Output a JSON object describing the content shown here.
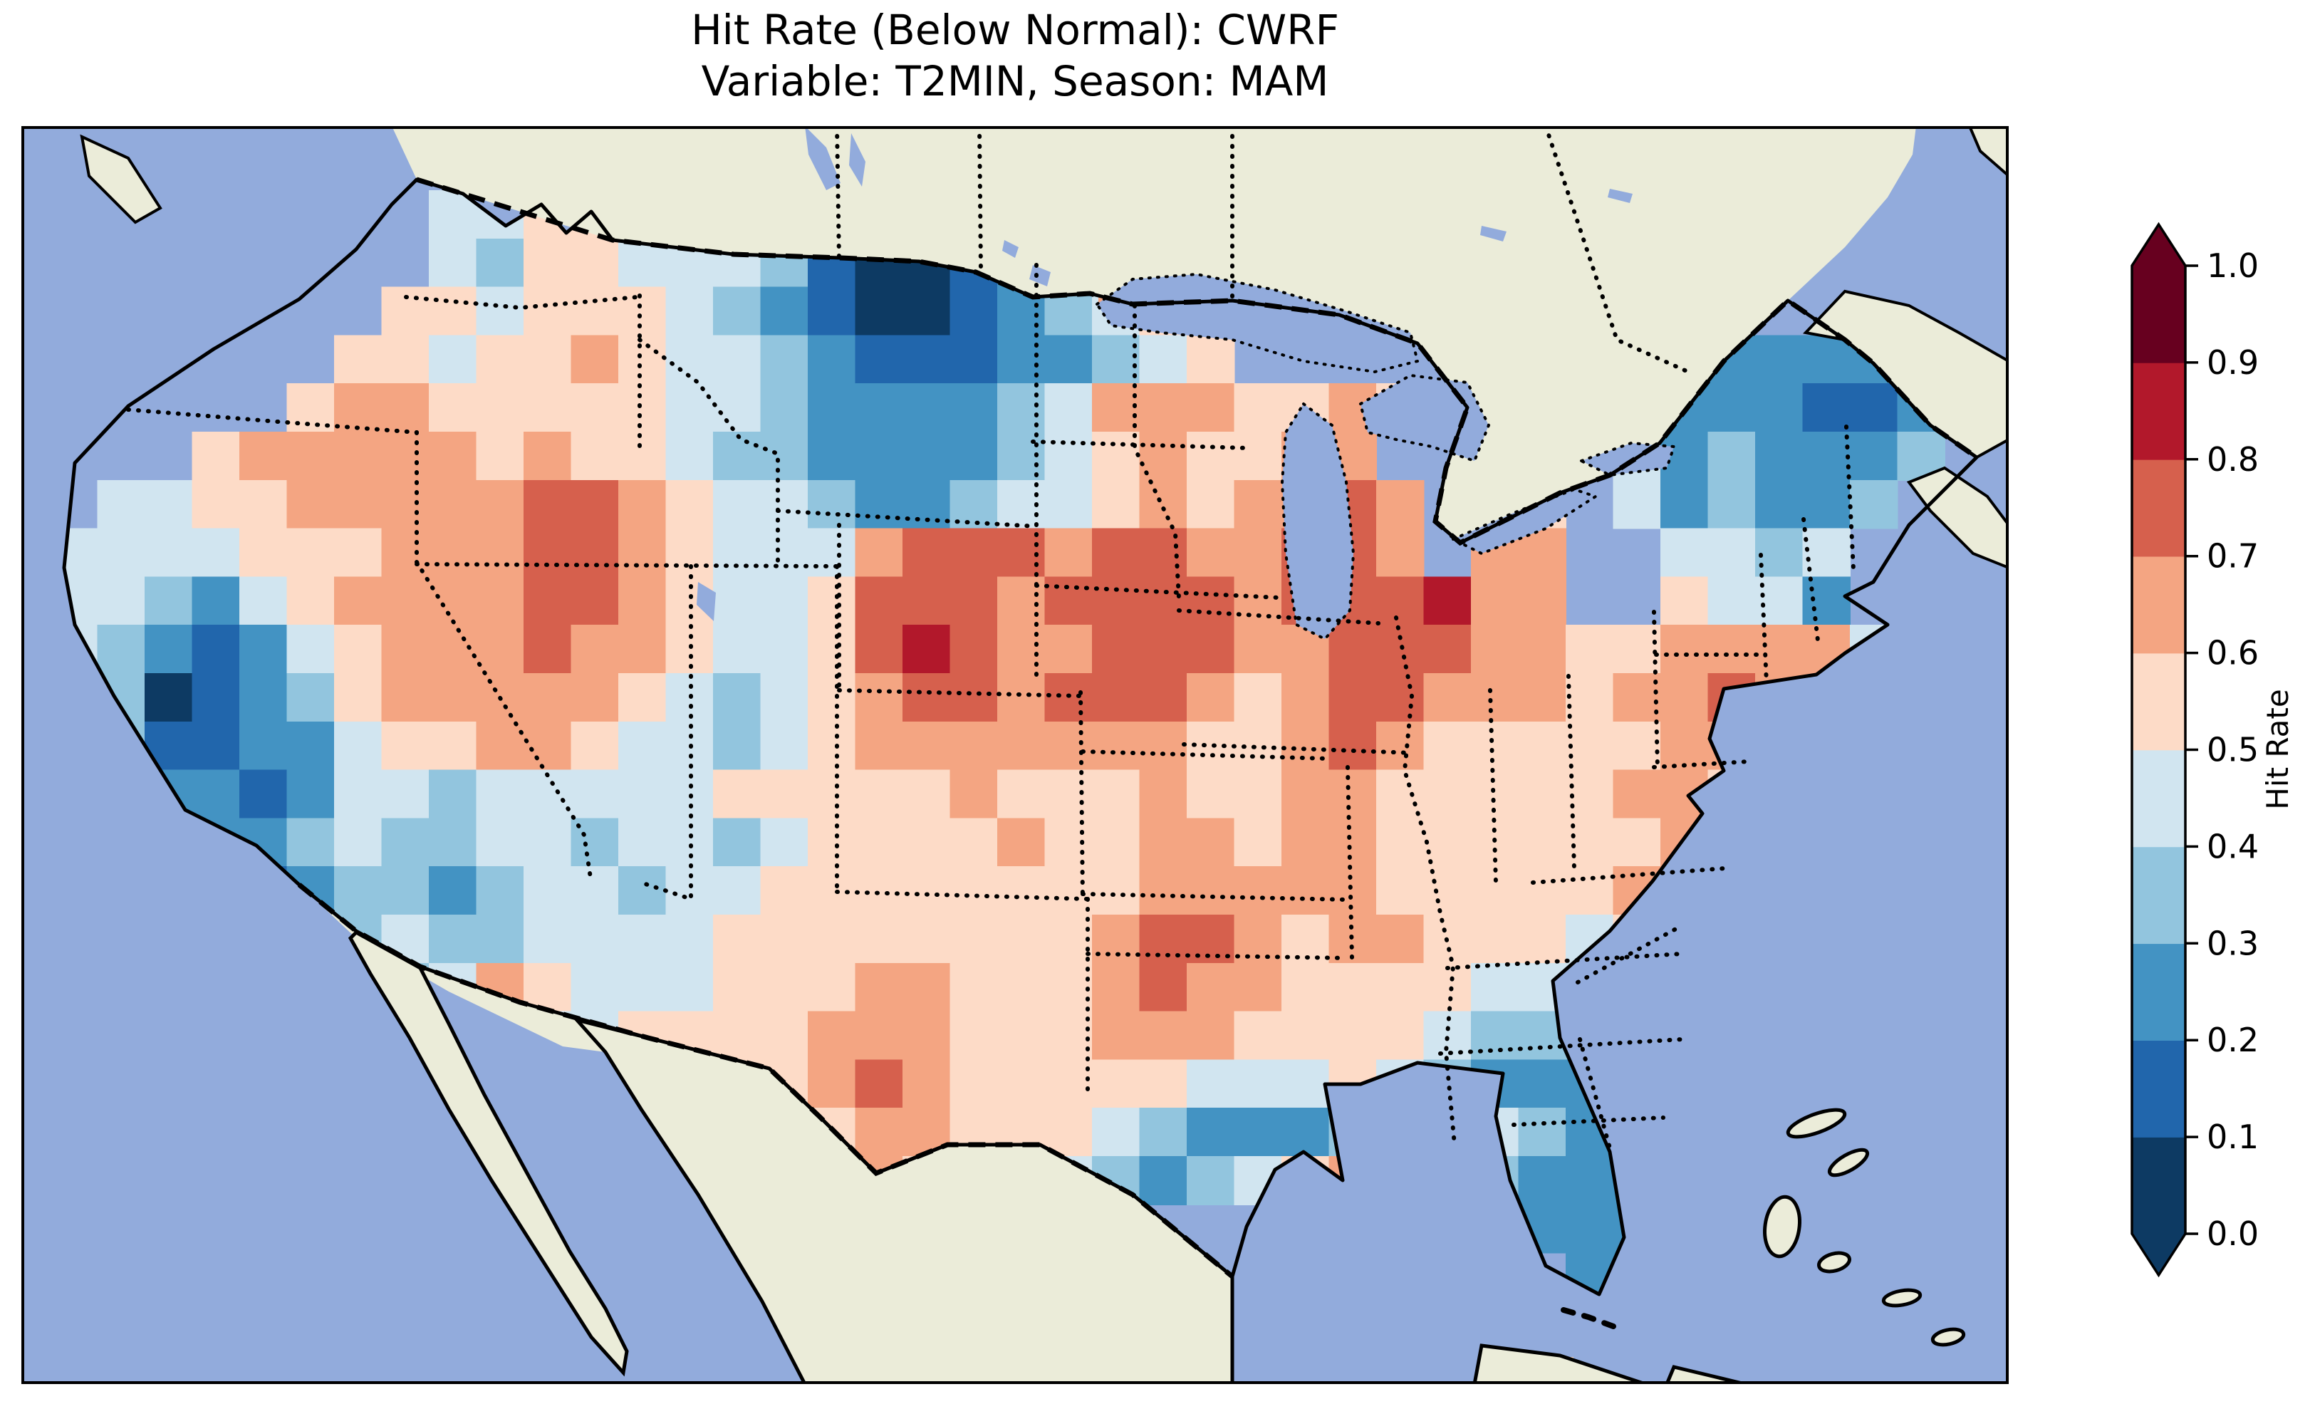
{
  "title": {
    "line1": "Hit Rate (Below Normal): CWRF",
    "line2": "Variable: T2MIN, Season: MAM"
  },
  "colorbar": {
    "label": "Hit Rate",
    "tick_labels_top_to_bottom": [
      "1.0",
      "0.9",
      "0.8",
      "0.7",
      "0.6",
      "0.5",
      "0.4",
      "0.3",
      "0.2",
      "0.1",
      "0.0"
    ],
    "extend": "both"
  },
  "chart_data": {
    "type": "heatmap",
    "title": "Hit Rate (Below Normal): CWRF",
    "subtitle": "Variable: T2MIN, Season: MAM",
    "metric": "Hit Rate (Below Normal)",
    "model": "CWRF",
    "variable": "T2MIN",
    "season": "MAM",
    "colorbar_label": "Hit Rate",
    "value_range": [
      0.0,
      1.0
    ],
    "bin_edges": [
      0.0,
      0.1,
      0.2,
      0.3,
      0.4,
      0.5,
      0.6,
      0.7,
      0.8,
      0.9,
      1.0
    ],
    "bin_colors": [
      "#0d3a63",
      "#2166ac",
      "#4393c3",
      "#92c5de",
      "#d1e5f0",
      "#fddbc7",
      "#f4a582",
      "#d6604d",
      "#b2182b",
      "#67001f"
    ],
    "under_color": "#0d3a63",
    "over_color": "#67001f",
    "region": "Contiguous United States (gridded model hit rate)",
    "map_theme": {
      "ocean": "#92abdc",
      "land": "#ebecd9",
      "lake": "#92abdc",
      "coastline": "#000000",
      "state_border_style": "dotted black",
      "country_border_style": "dashed black"
    },
    "grid": {
      "ncols": 40,
      "nrows": 24,
      "cell_encoding": "each char = one grid cell (west to east, north to south); digit d = hit-rate bin [d/10,(d+1)/10); '.' = no data / outside CONUS",
      "rows": [
        "........44554...........................",
        "........43554443100123..................",
        ".......5545554321001234555..............",
        "......5545565443211122345........212222.",
        ".....566555554432222346665565....3222112",
        "...5666665655433222234565566..54.4232223",
        ".4455666667765443223445656676.55.423223.",
        "44445556667765444677767766776.66..4434..",
        "44324566667765445777677776777866..5442..",
        "432124566676654457876677766777665566664.",
        "43012356666654345677677765677666566766..",
        "5311224556654434566666665567655555665...",
        ".422124434444455555655565566555556655...",
        "..32234334434434555565566566555555654...",
        "..31123323443445555555566666555556654...",
        "...223343344445555555567765665554565....",
        "....334346544455566555676655554445......",
        ".......44.445555666555666555543334......",
        ".............555676555554445432223......",
        ".............66556655543222355432.......",
        "..............65565544323456543222......",
        "..................44...........222......",
        "..................4.............22......",
        "................................22......"
      ],
      "isolated_cells": [
        {
          "note": "small data squares southwest of Florida tip",
          "bin": 5
        },
        {
          "note": "small data square southwest of Florida tip",
          "bin": 5
        },
        {
          "note": "Isle Royale cell in Lake Superior",
          "bin": 6
        }
      ],
      "notable_features": [
        "very low hit rate (0.0-0.1) core over North Dakota at Canadian border",
        "low hit rate band (0.1-0.3) along California Sierra into southern California",
        "low hit rate (0.2-0.3) over Maine, Adirondacks, Florida peninsula, south Georgia, Louisiana",
        "high hit rate (0.7-0.8) cores over Nebraska-Iowa and Wisconsin-Illinois",
        "isolated 0.8-0.9 cells south of Lake Erie and within Nebraska blob",
        "moderate highs (0.6-0.8) over Utah-Nevada, Oregon, west Texas, Mid-Atlantic coast"
      ]
    }
  }
}
